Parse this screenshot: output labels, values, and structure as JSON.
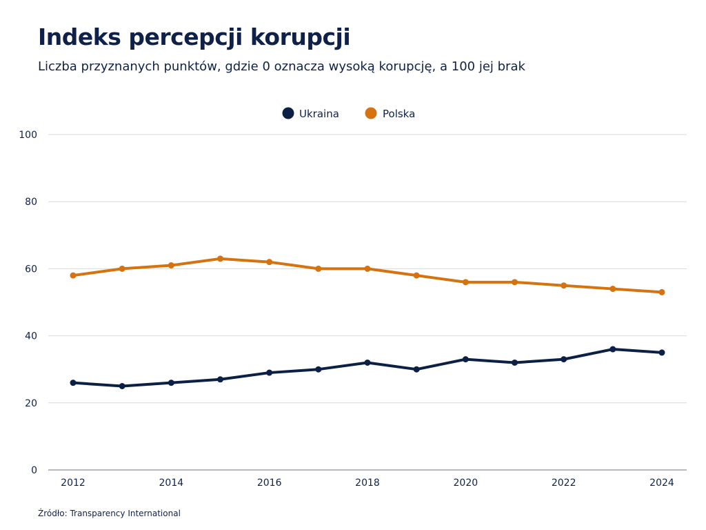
{
  "title": "Indeks percepcji korupcji",
  "subtitle": "Liczba przyznanych punktów, gdzie 0 oznacza wysoką korupcję, a 100 jej brak",
  "source": "Źródło: Transparency International",
  "chart_data": {
    "type": "line",
    "title": "Indeks percepcji korupcji",
    "subtitle": "Liczba przyznanych punktów, gdzie 0 oznacza wysoką korupcję, a 100 jej brak",
    "xlabel": "",
    "ylabel": "",
    "x": [
      2012,
      2013,
      2014,
      2015,
      2016,
      2017,
      2018,
      2019,
      2020,
      2021,
      2022,
      2023,
      2024
    ],
    "x_ticks": [
      "2012",
      "2014",
      "2016",
      "2018",
      "2020",
      "2022",
      "2024"
    ],
    "y_ticks": [
      "0",
      "20",
      "40",
      "60",
      "80",
      "100"
    ],
    "ylim": [
      0,
      100
    ],
    "xlim": [
      2012,
      2024
    ],
    "grid": true,
    "legend_position": "top-center",
    "series": [
      {
        "name": "Ukraina",
        "color": "#0c1f44",
        "values": [
          26,
          25,
          26,
          27,
          29,
          30,
          32,
          30,
          33,
          32,
          33,
          36,
          35
        ]
      },
      {
        "name": "Polska",
        "color": "#d4730f",
        "values": [
          58,
          60,
          61,
          63,
          62,
          60,
          60,
          58,
          56,
          56,
          55,
          54,
          53
        ]
      }
    ]
  }
}
